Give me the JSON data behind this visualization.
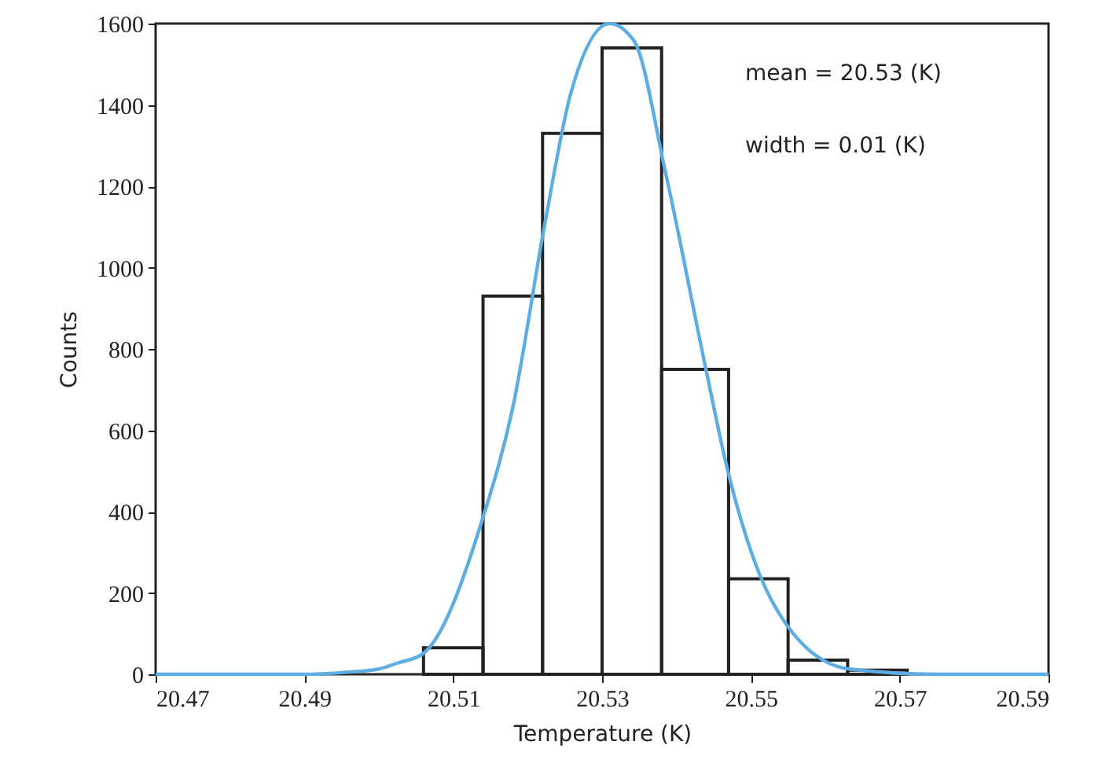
{
  "chart_data": {
    "type": "histogram",
    "xlabel": "Temperature (K)",
    "ylabel": "Counts",
    "annotations": [
      "mean = 20.53 (K)",
      "width = 0.01 (K)"
    ],
    "bins": [
      20.506,
      20.514,
      20.522,
      20.53,
      20.538,
      20.547,
      20.555,
      20.563,
      20.571
    ],
    "values": [
      65,
      930,
      1330,
      1540,
      750,
      235,
      35,
      10
    ],
    "color": "#222222",
    "series": [
      {
        "type": "line",
        "color": "#5dade2",
        "x": [
          20.47,
          20.49,
          20.495,
          20.5,
          20.5024,
          20.5059,
          20.514,
          20.518,
          20.5223,
          20.5258,
          20.531,
          20.5343,
          20.5385,
          20.544,
          20.5467,
          20.5512,
          20.5547,
          20.5632,
          20.575,
          20.59
        ],
        "values": [
          0,
          0,
          4,
          13,
          27,
          50,
          386,
          656,
          1107,
          1429,
          1600,
          1557,
          1236,
          746,
          515,
          244,
          124,
          13,
          0,
          0
        ]
      }
    ],
    "xlim": [
      20.47,
      20.59
    ],
    "xticks": [
      20.47,
      20.49,
      20.51,
      20.53,
      20.55,
      20.57,
      20.59
    ],
    "ylim": [
      0,
      1600
    ],
    "yticks": [
      0,
      200,
      400,
      600,
      800,
      1000,
      1200,
      1400,
      1600
    ],
    "grid": false
  }
}
